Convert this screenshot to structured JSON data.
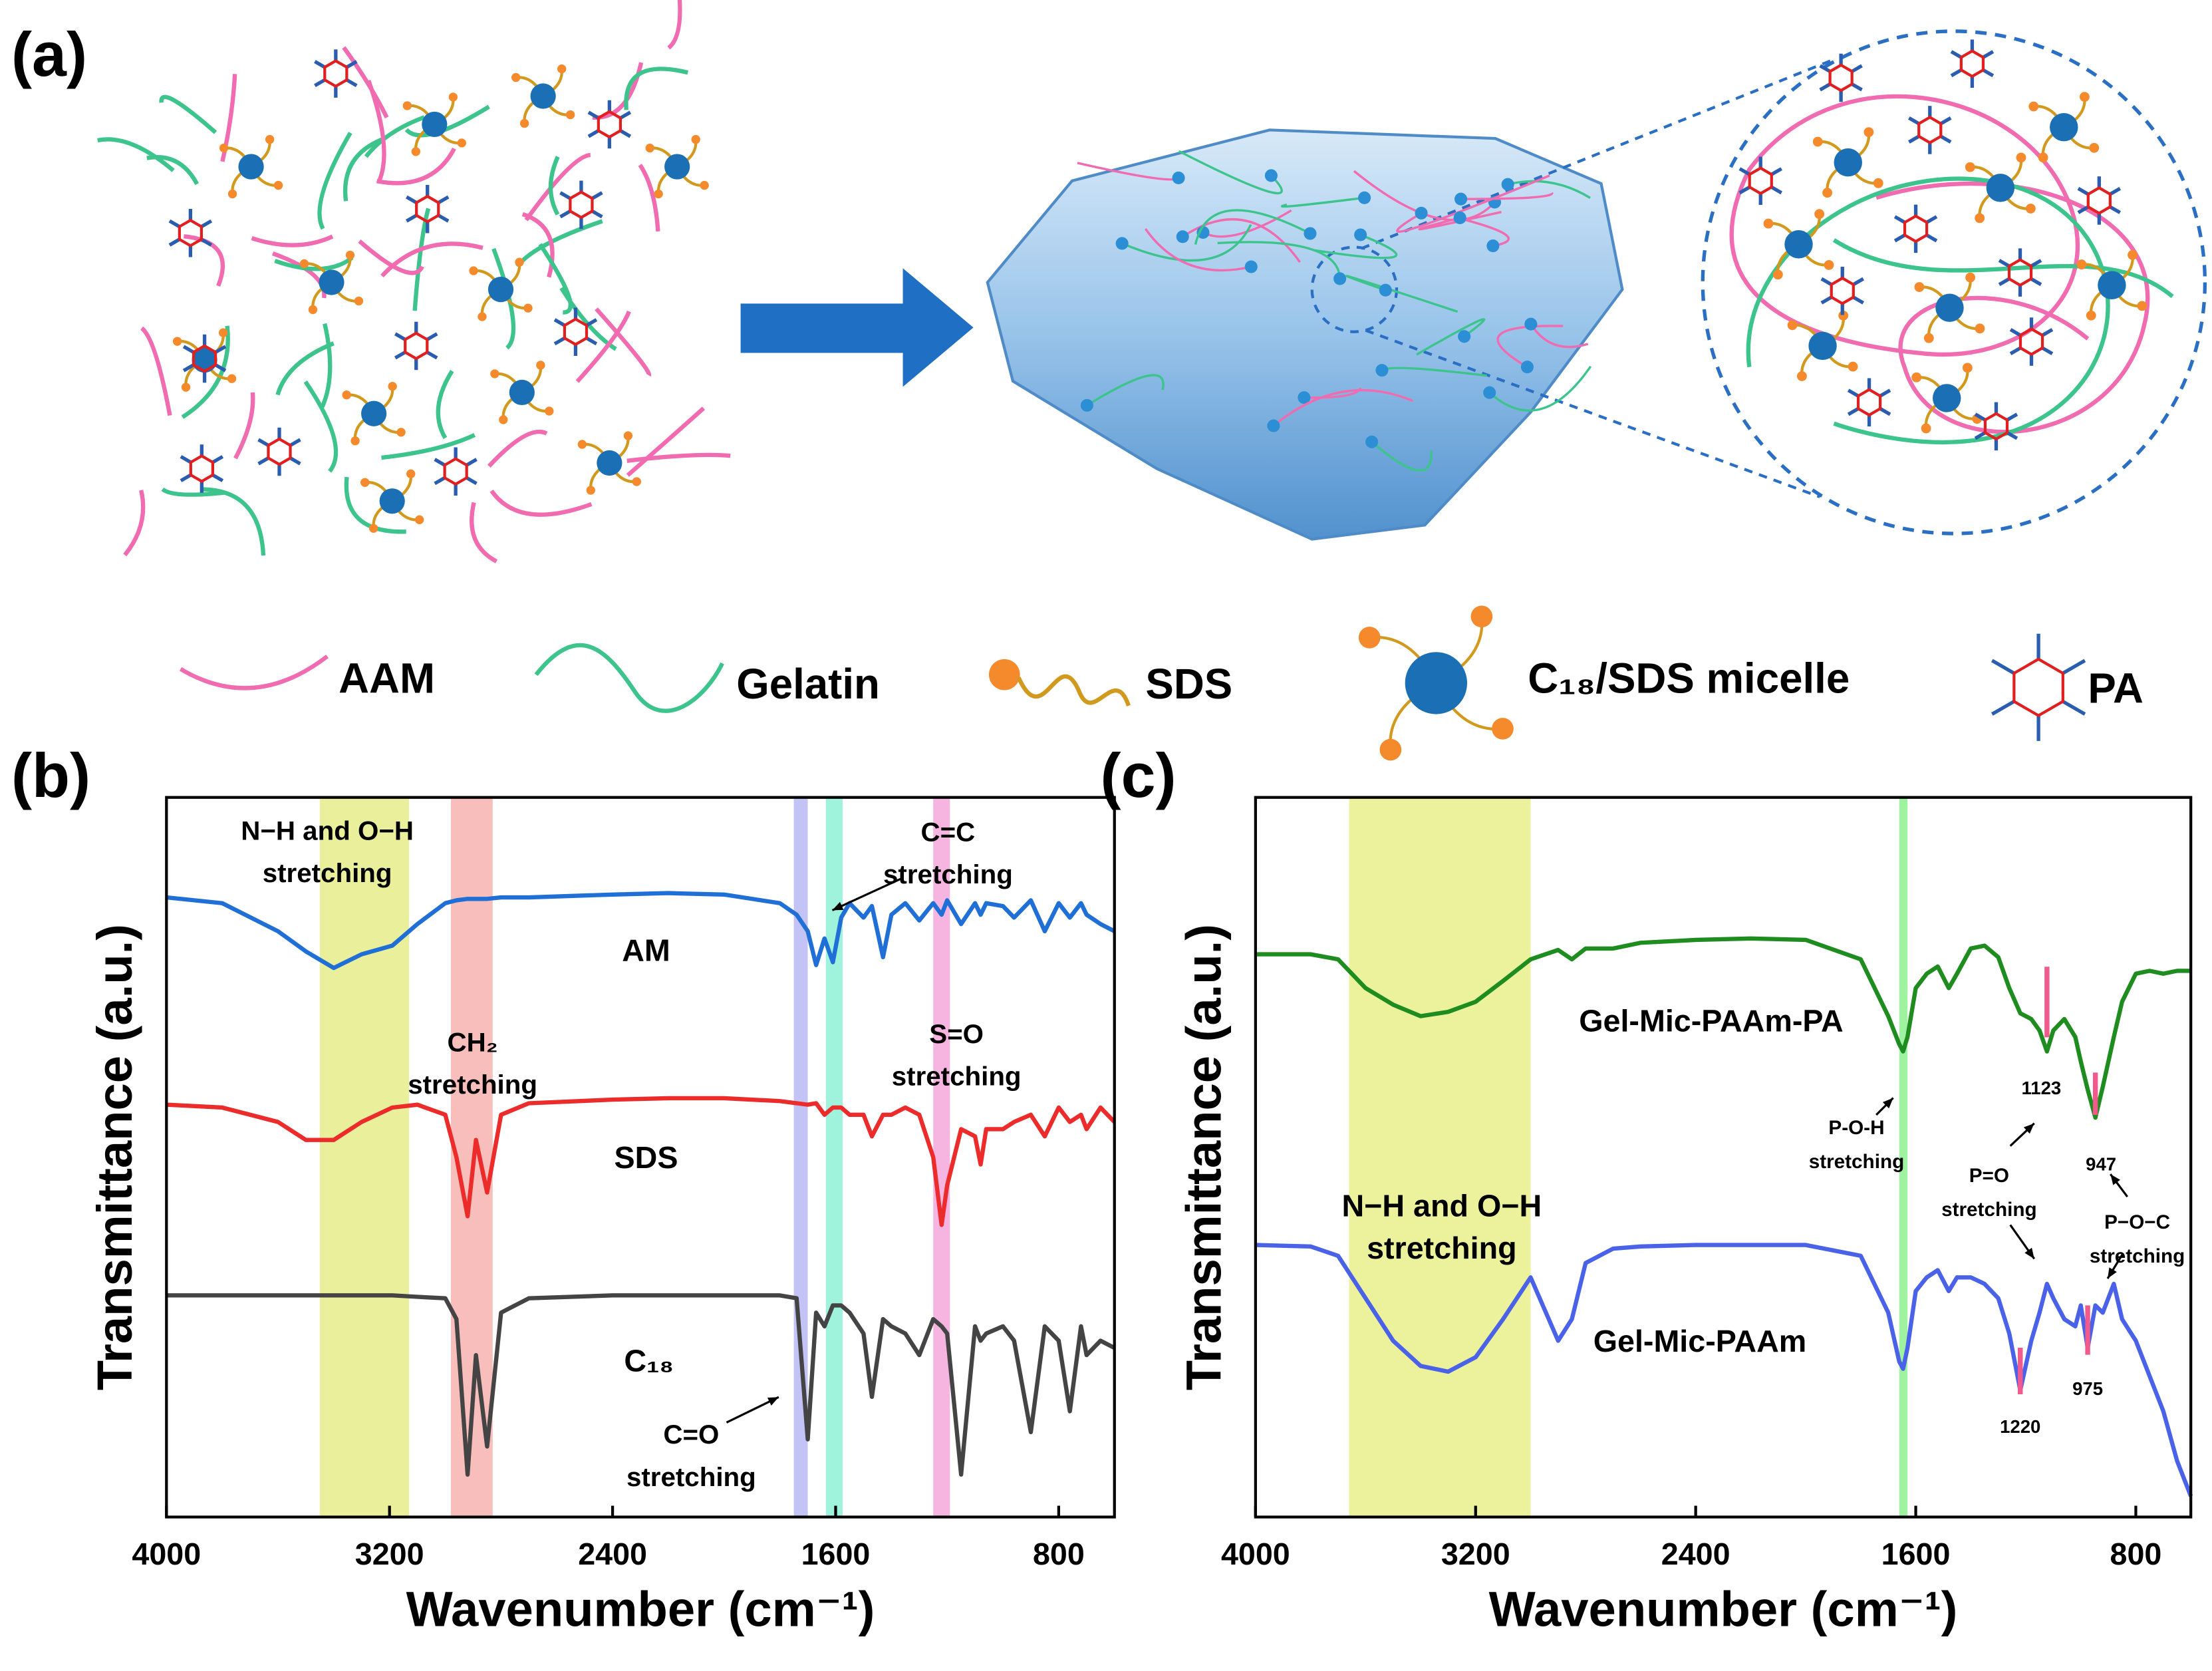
{
  "schematic": {
    "label": "(a)",
    "legend": [
      "AAM",
      "Gelatin",
      "SDS",
      "C₁₈/SDS micelle",
      "PA"
    ]
  },
  "chart_data": [
    {
      "type": "line",
      "panel_label": "(b)",
      "xlabel": "Wavenumber (cm⁻¹)",
      "ylabel": "Transmittance (a.u.)",
      "xlim": [
        4000,
        600
      ],
      "ylim": [
        0,
        100
      ],
      "xticks": [
        4000,
        3200,
        2400,
        1600,
        800
      ],
      "x": [
        4000,
        3800,
        3600,
        3500,
        3400,
        3300,
        3190,
        3100,
        3000,
        2960,
        2920,
        2890,
        2850,
        2800,
        2700,
        2400,
        2200,
        2000,
        1800,
        1740,
        1700,
        1670,
        1640,
        1610,
        1580,
        1550,
        1500,
        1470,
        1430,
        1400,
        1350,
        1300,
        1250,
        1220,
        1200,
        1150,
        1100,
        1080,
        1060,
        1000,
        960,
        900,
        850,
        800,
        760,
        720,
        700,
        650,
        600
      ],
      "series": [
        {
          "name": "AM",
          "color": "#1f6fd6",
          "values": [
            86.1,
            85.3,
            81.4,
            78.6,
            76.3,
            78.2,
            79.4,
            82.4,
            85.3,
            85.7,
            85.9,
            85.9,
            85.9,
            86.1,
            86.1,
            86.5,
            86.7,
            86.5,
            85.3,
            83.7,
            81.4,
            76.7,
            80.4,
            77.1,
            83.3,
            85.3,
            83.3,
            84.9,
            77.8,
            83.7,
            85.3,
            82.9,
            85.3,
            83.7,
            85.7,
            82.4,
            85.3,
            83.7,
            85.3,
            84.9,
            83.3,
            85.7,
            81.4,
            85.3,
            83.3,
            85.3,
            83.7,
            82.4,
            81.4
          ]
        },
        {
          "name": "SDS",
          "color": "#ec2b2b",
          "values": [
            57.3,
            56.9,
            54.9,
            52.4,
            52.4,
            54.9,
            56.9,
            57.3,
            55.9,
            50.0,
            41.8,
            52.4,
            45.1,
            55.9,
            57.5,
            58.0,
            58.2,
            58.2,
            57.8,
            57.5,
            57.3,
            57.5,
            55.9,
            56.9,
            56.9,
            55.9,
            55.9,
            52.9,
            55.9,
            55.9,
            56.9,
            55.9,
            50.0,
            40.6,
            46.1,
            53.9,
            52.9,
            49.0,
            53.9,
            53.9,
            54.9,
            55.9,
            52.9,
            56.9,
            54.9,
            55.9,
            53.9,
            56.9,
            54.9
          ]
        },
        {
          "name": "C₁₈",
          "color": "#444444",
          "values": [
            30.8,
            30.8,
            30.8,
            30.8,
            30.8,
            30.8,
            30.8,
            30.6,
            30.4,
            27.5,
            5.9,
            22.5,
            9.8,
            28.4,
            30.4,
            30.8,
            30.8,
            30.8,
            30.8,
            30.4,
            10.8,
            28.4,
            26.5,
            29.4,
            29.4,
            28.4,
            25.5,
            16.7,
            27.5,
            26.5,
            25.5,
            22.5,
            27.5,
            26.5,
            25.5,
            5.9,
            26.5,
            24.5,
            25.5,
            26.5,
            24.5,
            11.8,
            26.5,
            24.5,
            14.7,
            26.5,
            22.5,
            24.5,
            23.5
          ]
        }
      ],
      "bands": [
        {
          "from": 3450,
          "to": 3130,
          "color": "#e6ec8a"
        },
        {
          "from": 2980,
          "to": 2830,
          "color": "#f7b3b0"
        },
        {
          "from": 1750,
          "to": 1700,
          "color": "#b9b9f5"
        },
        {
          "from": 1635,
          "to": 1575,
          "color": "#8ef0d6"
        },
        {
          "from": 1250,
          "to": 1190,
          "color": "#f5a8dc"
        }
      ],
      "annotations": [
        {
          "lines": [
            "N−H and O−H",
            "stretching"
          ]
        },
        {
          "lines": [
            "C=C",
            "stretching"
          ]
        },
        {
          "lines": [
            "CH₂",
            "stretching"
          ]
        },
        {
          "lines": [
            "S=O",
            "stretching"
          ]
        },
        {
          "lines": [
            "C=O",
            "stretching"
          ]
        }
      ]
    },
    {
      "type": "line",
      "panel_label": "(c)",
      "xlabel": "Wavenumber (cm⁻¹)",
      "ylabel": "Transmittance (a.u.)",
      "xlim": [
        4000,
        600
      ],
      "ylim": [
        0,
        100
      ],
      "xticks": [
        4000,
        3200,
        2400,
        1600,
        800
      ],
      "x": [
        4000,
        3800,
        3700,
        3600,
        3500,
        3400,
        3300,
        3200,
        3100,
        3000,
        2900,
        2850,
        2800,
        2700,
        2600,
        2400,
        2200,
        2000,
        1800,
        1700,
        1660,
        1646,
        1630,
        1600,
        1560,
        1520,
        1480,
        1450,
        1400,
        1350,
        1300,
        1260,
        1220,
        1180,
        1150,
        1123,
        1100,
        1060,
        1020,
        1000,
        975,
        947,
        920,
        880,
        850,
        800,
        750,
        700,
        650,
        600
      ],
      "series": [
        {
          "name": "Gel-Mic-PAAm-PA",
          "color": "#1e8c1e",
          "values": [
            78.2,
            78.2,
            77.5,
            73.5,
            71.2,
            69.6,
            70.2,
            71.6,
            74.5,
            77.5,
            78.8,
            77.5,
            79.0,
            79.0,
            79.8,
            80.2,
            80.4,
            80.2,
            77.5,
            69.6,
            65.7,
            64.7,
            66.7,
            73.5,
            75.5,
            76.5,
            73.5,
            75.5,
            79.0,
            79.4,
            77.8,
            73.5,
            70.0,
            69.2,
            67.6,
            64.7,
            67.6,
            69.2,
            66.7,
            63.3,
            59.4,
            55.5,
            59.8,
            66.7,
            71.6,
            75.5,
            75.9,
            75.5,
            75.9,
            75.9
          ]
        },
        {
          "name": "Gel-Mic-PAAm",
          "color": "#4a62e8",
          "values": [
            37.8,
            37.6,
            36.3,
            30.4,
            24.5,
            21.0,
            20.2,
            22.2,
            27.5,
            33.3,
            24.5,
            27.5,
            35.3,
            37.3,
            37.6,
            37.8,
            37.8,
            37.8,
            36.3,
            28.4,
            21.6,
            20.6,
            23.5,
            31.4,
            33.3,
            34.3,
            31.4,
            33.3,
            33.3,
            32.4,
            30.4,
            25.5,
            17.6,
            24.5,
            28.4,
            32.4,
            30.4,
            27.5,
            26.5,
            29.4,
            23.5,
            29.4,
            28.4,
            32.4,
            27.5,
            24.5,
            19.6,
            14.7,
            7.8,
            2.9
          ]
        }
      ],
      "bands": [
        {
          "from": 3660,
          "to": 3000,
          "color": "#e9f08a"
        },
        {
          "from": 1660,
          "to": 1630,
          "color": "#8ef08e"
        }
      ],
      "markers": [
        1123,
        947,
        1220,
        975
      ],
      "annotations": [
        {
          "lines": [
            "N−H and O−H",
            "stretching"
          ]
        },
        {
          "lines": [
            "P-O-H",
            "stretching"
          ]
        },
        {
          "lines": [
            "P=O",
            "stretching"
          ]
        },
        {
          "lines": [
            "P−O−C",
            "stretching"
          ]
        }
      ]
    }
  ]
}
